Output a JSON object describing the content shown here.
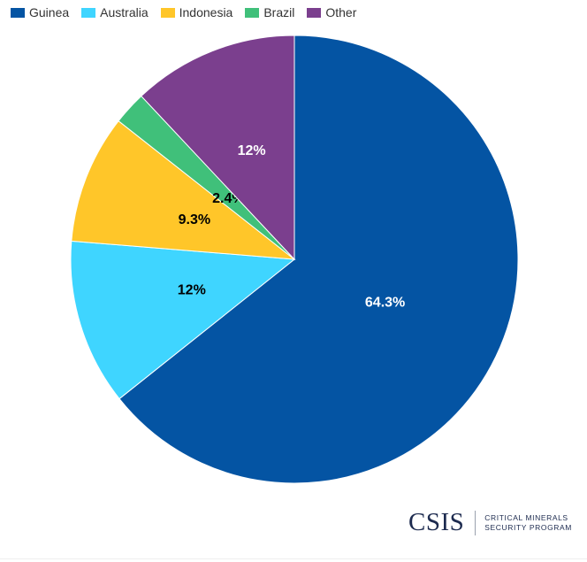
{
  "chart_data": {
    "type": "pie",
    "title": "",
    "categories": [
      "Guinea",
      "Australia",
      "Indonesia",
      "Brazil",
      "Other"
    ],
    "values": [
      64.3,
      12,
      9.3,
      2.4,
      12
    ],
    "data_labels": [
      "64.3%",
      "12%",
      "9.3%",
      "2.4%",
      "12%"
    ],
    "colors": [
      "#0454a3",
      "#3fd5ff",
      "#ffc629",
      "#40c07a",
      "#7b3f8e"
    ],
    "label_colors": [
      "#ffffff",
      "#000000",
      "#000000",
      "#000000",
      "#ffffff"
    ],
    "start_angle_deg": 0,
    "direction": "clockwise",
    "legend_position": "top-left"
  },
  "logo": {
    "mark": "CSIS",
    "line1": "CRITICAL MINERALS",
    "line2": "SECURITY PROGRAM"
  }
}
